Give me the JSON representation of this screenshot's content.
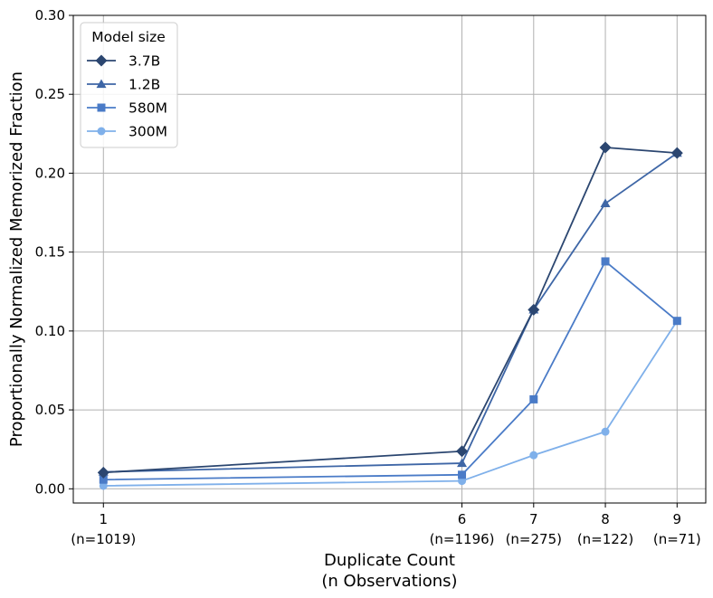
{
  "chart_data": {
    "type": "line",
    "xlabel_line1": "Duplicate Count",
    "xlabel_line2": "(n Observations)",
    "ylabel": "Proportionally Normalized Memorized Fraction",
    "x": [
      1,
      6,
      7,
      8,
      9
    ],
    "x_tick_labels": [
      {
        "value": "1",
        "sub": "(n=1019)"
      },
      {
        "value": "6",
        "sub": "(n=1196)"
      },
      {
        "value": "7",
        "sub": "(n=275)"
      },
      {
        "value": "8",
        "sub": "(n=122)"
      },
      {
        "value": "9",
        "sub": "(n=71)"
      }
    ],
    "y_ticks": [
      "0.00",
      "0.05",
      "0.10",
      "0.15",
      "0.20",
      "0.25",
      "0.30"
    ],
    "y_tick_values": [
      0,
      0.05,
      0.1,
      0.15,
      0.2,
      0.25,
      0.3
    ],
    "xlim": [
      0.58,
      9.4
    ],
    "ylim": [
      -0.009,
      0.3
    ],
    "grid": true,
    "legend": {
      "title": "Model size",
      "position": "top-left"
    },
    "series": [
      {
        "name": "3.7B",
        "color": "#2b4670",
        "marker": "diamond",
        "values": [
          0.0103,
          0.0238,
          0.1135,
          0.2163,
          0.2128
        ]
      },
      {
        "name": "1.2B",
        "color": "#3e66a6",
        "marker": "triangle",
        "values": [
          0.0107,
          0.0162,
          0.1135,
          0.1808,
          0.2128
        ]
      },
      {
        "name": "580M",
        "color": "#4a7bc7",
        "marker": "square",
        "values": [
          0.0058,
          0.0089,
          0.0567,
          0.1441,
          0.1064
        ]
      },
      {
        "name": "300M",
        "color": "#7fb0ea",
        "marker": "circle",
        "values": [
          0.0019,
          0.005,
          0.0213,
          0.0362,
          0.1064
        ]
      }
    ]
  }
}
